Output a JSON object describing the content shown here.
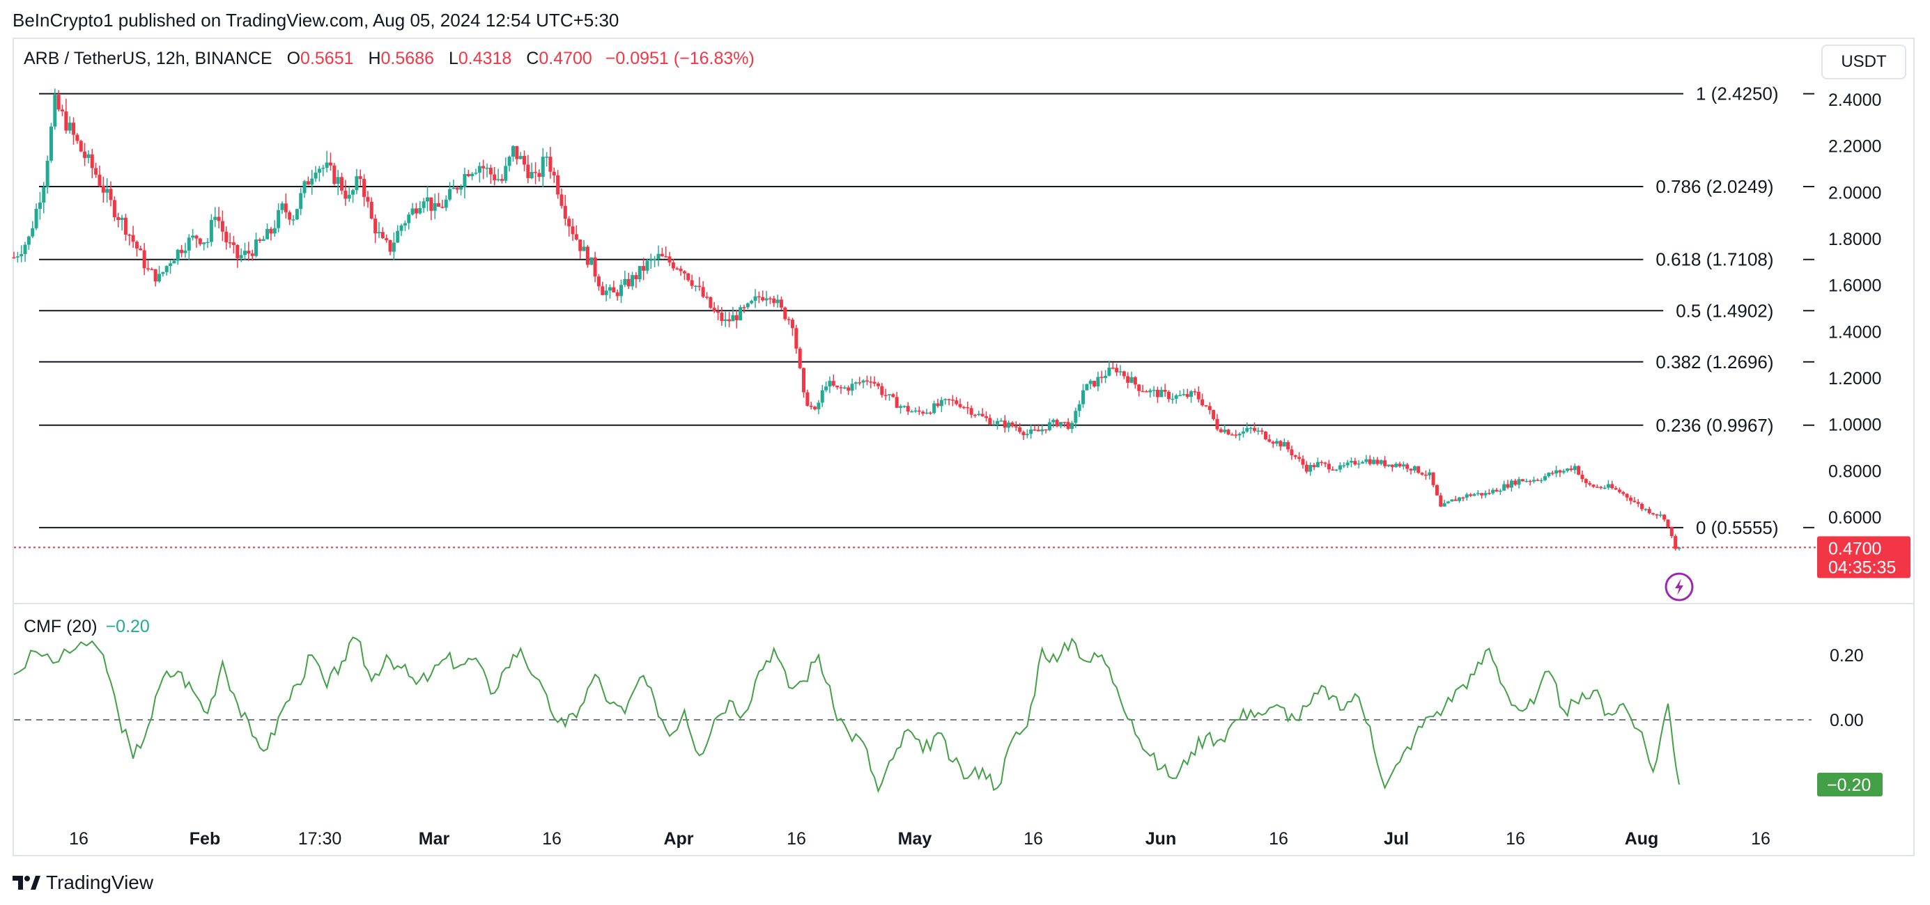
{
  "header": {
    "published": "BeInCrypto1 published on TradingView.com, Aug 05, 2024 12:54 UTC+5:30"
  },
  "legend": {
    "symbol": "ARB / TetherUS, 12h, BINANCE",
    "o_label": "O",
    "o_value": "0.5651",
    "h_label": "H",
    "h_value": "0.5686",
    "l_label": "L",
    "l_value": "0.4318",
    "c_label": "C",
    "c_value": "0.4700",
    "change": "−0.0951 (−16.83%)"
  },
  "currency_button": "USDT",
  "cmf": {
    "label": "CMF (20)",
    "value": "−0.20",
    "badge": "−0.20"
  },
  "price_badge": {
    "price": "0.4700",
    "countdown": "04:35:35"
  },
  "brand": "TradingView",
  "colors": {
    "up": "#22ab94",
    "down": "#f23645",
    "cmf_line": "#43a047",
    "fib_line": "#131722",
    "badge_red": "#f23645",
    "badge_green": "#43a047",
    "flash_icon": "#9c27b0"
  },
  "chart_data": [
    {
      "type": "candlestick",
      "title": "ARB / TetherUS, 12h, BINANCE",
      "y_axis_ticks": [
        "2.4000",
        "2.2000",
        "2.0000",
        "1.8000",
        "1.6000",
        "1.4000",
        "1.2000",
        "1.0000",
        "0.8000",
        "0.6000"
      ],
      "y_range": [
        0.43,
        2.48
      ],
      "x_axis_ticks": [
        "16",
        "Feb",
        "17:30",
        "Mar",
        "16",
        "Apr",
        "16",
        "May",
        "16",
        "Jun",
        "16",
        "Jul",
        "16",
        "Aug",
        "16"
      ],
      "x_axis_bold": [
        "Feb",
        "Mar",
        "Apr",
        "May",
        "Jun",
        "Jul",
        "Aug"
      ],
      "last_price": 0.47,
      "fib_levels": [
        {
          "ratio": "1",
          "price": 2.425,
          "label": "1 (2.4250)"
        },
        {
          "ratio": "0.786",
          "price": 2.0249,
          "label": "0.786 (2.0249)"
        },
        {
          "ratio": "0.618",
          "price": 1.7108,
          "label": "0.618 (1.7108)"
        },
        {
          "ratio": "0.5",
          "price": 1.4902,
          "label": "0.5 (1.4902)"
        },
        {
          "ratio": "0.382",
          "price": 1.2696,
          "label": "0.382 (1.2696)"
        },
        {
          "ratio": "0.236",
          "price": 0.9967,
          "label": "0.236 (0.9967)"
        },
        {
          "ratio": "0",
          "price": 0.5555,
          "label": "0 (0.5555)"
        }
      ],
      "close_path": [
        [
          0,
          1.72
        ],
        [
          4,
          1.8
        ],
        [
          8,
          2.05
        ],
        [
          11,
          2.38
        ],
        [
          14,
          2.3
        ],
        [
          18,
          2.18
        ],
        [
          22,
          2.08
        ],
        [
          26,
          1.95
        ],
        [
          30,
          1.85
        ],
        [
          33,
          1.76
        ],
        [
          36,
          1.66
        ],
        [
          39,
          1.63
        ],
        [
          42,
          1.71
        ],
        [
          46,
          1.78
        ],
        [
          49,
          1.81
        ],
        [
          52,
          1.79
        ],
        [
          54,
          1.92
        ],
        [
          57,
          1.79
        ],
        [
          60,
          1.72
        ],
        [
          63,
          1.74
        ],
        [
          66,
          1.78
        ],
        [
          69,
          1.83
        ],
        [
          72,
          1.93
        ],
        [
          75,
          1.9
        ],
        [
          78,
          2.02
        ],
        [
          81,
          2.12
        ],
        [
          84,
          2.1
        ],
        [
          87,
          2.05
        ],
        [
          90,
          1.97
        ],
        [
          93,
          2.07
        ],
        [
          96,
          1.88
        ],
        [
          99,
          1.78
        ],
        [
          101,
          1.76
        ],
        [
          104,
          1.86
        ],
        [
          107,
          1.92
        ],
        [
          110,
          1.99
        ],
        [
          113,
          1.92
        ],
        [
          116,
          1.96
        ],
        [
          119,
          2.03
        ],
        [
          122,
          2.1
        ],
        [
          125,
          2.12
        ],
        [
          128,
          2.08
        ],
        [
          131,
          2.05
        ],
        [
          134,
          2.18
        ],
        [
          137,
          2.12
        ],
        [
          140,
          2.05
        ],
        [
          143,
          2.16
        ],
        [
          146,
          2.02
        ],
        [
          149,
          1.87
        ],
        [
          152,
          1.77
        ],
        [
          155,
          1.69
        ],
        [
          158,
          1.58
        ],
        [
          161,
          1.56
        ],
        [
          164,
          1.6
        ],
        [
          167,
          1.64
        ],
        [
          170,
          1.69
        ],
        [
          173,
          1.72
        ],
        [
          176,
          1.7
        ],
        [
          179,
          1.68
        ],
        [
          182,
          1.62
        ],
        [
          185,
          1.55
        ],
        [
          188,
          1.48
        ],
        [
          191,
          1.44
        ],
        [
          194,
          1.47
        ],
        [
          197,
          1.5
        ],
        [
          200,
          1.55
        ],
        [
          203,
          1.57
        ],
        [
          206,
          1.49
        ],
        [
          209,
          1.44
        ],
        [
          212,
          1.12
        ],
        [
          215,
          1.05
        ],
        [
          218,
          1.18
        ],
        [
          221,
          1.15
        ],
        [
          224,
          1.16
        ],
        [
          227,
          1.18
        ],
        [
          230,
          1.2
        ],
        [
          233,
          1.14
        ],
        [
          236,
          1.1
        ],
        [
          239,
          1.07
        ],
        [
          242,
          1.05
        ],
        [
          245,
          1.06
        ],
        [
          248,
          1.08
        ],
        [
          251,
          1.1
        ],
        [
          254,
          1.09
        ],
        [
          257,
          1.06
        ],
        [
          260,
          1.03
        ],
        [
          263,
          1.01
        ],
        [
          266,
          1.0
        ],
        [
          269,
          0.99
        ],
        [
          272,
          0.96
        ],
        [
          275,
          0.97
        ],
        [
          278,
          1.0
        ],
        [
          281,
          1.01
        ],
        [
          284,
          0.99
        ],
        [
          287,
          1.15
        ],
        [
          290,
          1.18
        ],
        [
          293,
          1.22
        ],
        [
          296,
          1.24
        ],
        [
          299,
          1.2
        ],
        [
          302,
          1.16
        ],
        [
          305,
          1.14
        ],
        [
          308,
          1.13
        ],
        [
          311,
          1.12
        ],
        [
          314,
          1.12
        ],
        [
          317,
          1.13
        ],
        [
          320,
          1.08
        ],
        [
          323,
          0.99
        ],
        [
          326,
          0.97
        ],
        [
          329,
          0.96
        ],
        [
          332,
          0.98
        ],
        [
          335,
          0.96
        ],
        [
          338,
          0.93
        ],
        [
          341,
          0.91
        ],
        [
          344,
          0.86
        ],
        [
          347,
          0.81
        ],
        [
          350,
          0.83
        ],
        [
          353,
          0.82
        ],
        [
          356,
          0.81
        ],
        [
          359,
          0.83
        ],
        [
          362,
          0.85
        ],
        [
          365,
          0.84
        ],
        [
          368,
          0.83
        ],
        [
          371,
          0.83
        ],
        [
          374,
          0.82
        ],
        [
          377,
          0.8
        ],
        [
          380,
          0.78
        ],
        [
          383,
          0.64
        ],
        [
          386,
          0.67
        ],
        [
          389,
          0.69
        ],
        [
          392,
          0.7
        ],
        [
          395,
          0.7
        ],
        [
          398,
          0.72
        ],
        [
          401,
          0.74
        ],
        [
          404,
          0.76
        ],
        [
          407,
          0.76
        ],
        [
          410,
          0.77
        ],
        [
          413,
          0.79
        ],
        [
          416,
          0.8
        ],
        [
          419,
          0.82
        ],
        [
          422,
          0.74
        ],
        [
          425,
          0.73
        ],
        [
          428,
          0.73
        ],
        [
          431,
          0.71
        ],
        [
          434,
          0.68
        ],
        [
          437,
          0.64
        ],
        [
          440,
          0.62
        ],
        [
          443,
          0.6
        ],
        [
          446,
          0.47
        ]
      ]
    },
    {
      "type": "line",
      "title": "CMF (20)",
      "y_axis_ticks": [
        "0.20",
        "0.00"
      ],
      "y_range": [
        -0.24,
        0.27
      ],
      "zero_line": 0.0,
      "series": [
        {
          "name": "CMF (20)",
          "points": [
            [
              0,
              0.14
            ],
            [
              6,
              0.21
            ],
            [
              12,
              0.18
            ],
            [
              18,
              0.24
            ],
            [
              24,
              0.2
            ],
            [
              28,
              0.02
            ],
            [
              32,
              -0.12
            ],
            [
              36,
              -0.02
            ],
            [
              40,
              0.13
            ],
            [
              44,
              0.15
            ],
            [
              48,
              0.09
            ],
            [
              52,
              0.02
            ],
            [
              56,
              0.18
            ],
            [
              60,
              0.05
            ],
            [
              64,
              -0.05
            ],
            [
              68,
              -0.09
            ],
            [
              72,
              0.03
            ],
            [
              76,
              0.11
            ],
            [
              80,
              0.2
            ],
            [
              84,
              0.1
            ],
            [
              88,
              0.18
            ],
            [
              92,
              0.25
            ],
            [
              96,
              0.12
            ],
            [
              100,
              0.2
            ],
            [
              104,
              0.16
            ],
            [
              108,
              0.11
            ],
            [
              112,
              0.14
            ],
            [
              116,
              0.19
            ],
            [
              120,
              0.17
            ],
            [
              124,
              0.19
            ],
            [
              128,
              0.08
            ],
            [
              132,
              0.16
            ],
            [
              136,
              0.22
            ],
            [
              140,
              0.13
            ],
            [
              144,
              0.03
            ],
            [
              148,
              -0.02
            ],
            [
              152,
              0.04
            ],
            [
              156,
              0.14
            ],
            [
              160,
              0.05
            ],
            [
              164,
              0.02
            ],
            [
              168,
              0.13
            ],
            [
              172,
              0.06
            ],
            [
              176,
              -0.05
            ],
            [
              180,
              0.03
            ],
            [
              184,
              -0.11
            ],
            [
              188,
              0.0
            ],
            [
              192,
              0.06
            ],
            [
              196,
              0.02
            ],
            [
              200,
              0.15
            ],
            [
              204,
              0.22
            ],
            [
              208,
              0.1
            ],
            [
              212,
              0.12
            ],
            [
              216,
              0.2
            ],
            [
              220,
              0.04
            ],
            [
              224,
              -0.04
            ],
            [
              228,
              -0.07
            ],
            [
              232,
              -0.22
            ],
            [
              236,
              -0.12
            ],
            [
              240,
              -0.03
            ],
            [
              244,
              -0.1
            ],
            [
              248,
              -0.04
            ],
            [
              252,
              -0.13
            ],
            [
              256,
              -0.18
            ],
            [
              260,
              -0.15
            ],
            [
              264,
              -0.21
            ],
            [
              268,
              -0.06
            ],
            [
              272,
              -0.02
            ],
            [
              276,
              0.22
            ],
            [
              280,
              0.18
            ],
            [
              284,
              0.25
            ],
            [
              288,
              0.18
            ],
            [
              292,
              0.2
            ],
            [
              296,
              0.1
            ],
            [
              300,
              0.0
            ],
            [
              304,
              -0.1
            ],
            [
              308,
              -0.15
            ],
            [
              312,
              -0.18
            ],
            [
              316,
              -0.1
            ],
            [
              320,
              -0.05
            ],
            [
              324,
              -0.06
            ],
            [
              328,
              0.0
            ],
            [
              332,
              0.03
            ],
            [
              336,
              0.02
            ],
            [
              340,
              0.04
            ],
            [
              344,
              0.0
            ],
            [
              348,
              0.05
            ],
            [
              352,
              0.1
            ],
            [
              356,
              0.03
            ],
            [
              360,
              0.08
            ],
            [
              364,
              -0.02
            ],
            [
              368,
              -0.21
            ],
            [
              372,
              -0.13
            ],
            [
              376,
              -0.05
            ],
            [
              380,
              0.01
            ],
            [
              384,
              0.04
            ],
            [
              388,
              0.1
            ],
            [
              392,
              0.14
            ],
            [
              396,
              0.22
            ],
            [
              400,
              0.1
            ],
            [
              404,
              0.03
            ],
            [
              408,
              0.05
            ],
            [
              412,
              0.15
            ],
            [
              416,
              0.03
            ],
            [
              420,
              0.05
            ],
            [
              424,
              0.09
            ],
            [
              428,
              0.02
            ],
            [
              432,
              0.05
            ],
            [
              436,
              -0.03
            ],
            [
              440,
              -0.16
            ],
            [
              444,
              0.05
            ],
            [
              447,
              -0.2
            ]
          ]
        }
      ]
    }
  ]
}
